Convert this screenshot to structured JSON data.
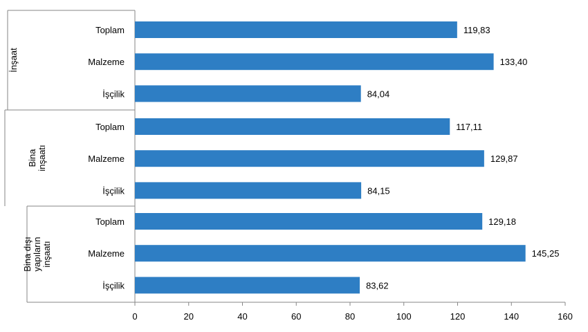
{
  "chart_data": {
    "type": "bar",
    "orientation": "horizontal",
    "title": "",
    "xlabel": "",
    "ylabel": "",
    "xlim": [
      0,
      160
    ],
    "x_ticks": [
      "0",
      "20",
      "40",
      "60",
      "80",
      "100",
      "120",
      "140",
      "160"
    ],
    "grid": false,
    "bar_color": "#2e7ec4",
    "groups": [
      {
        "lines": [
          "İnşaat"
        ],
        "bars": [
          {
            "category": "Toplam",
            "value": 119.83,
            "label": "119,83"
          },
          {
            "category": "Malzeme",
            "value": 133.4,
            "label": "133,40"
          },
          {
            "category": "İşçilik",
            "value": 84.04,
            "label": "84,04"
          }
        ]
      },
      {
        "lines": [
          "Bina",
          "inşaatı"
        ],
        "bars": [
          {
            "category": "Toplam",
            "value": 117.11,
            "label": "117,11"
          },
          {
            "category": "Malzeme",
            "value": 129.87,
            "label": "129,87"
          },
          {
            "category": "İşçilik",
            "value": 84.15,
            "label": "84,15"
          }
        ]
      },
      {
        "lines": [
          "Bina dışı",
          "yapıların",
          "inşaatı"
        ],
        "bars": [
          {
            "category": "Toplam",
            "value": 129.18,
            "label": "129,18"
          },
          {
            "category": "Malzeme",
            "value": 145.25,
            "label": "145,25"
          },
          {
            "category": "İşçilik",
            "value": 83.62,
            "label": "83,62"
          }
        ]
      }
    ]
  }
}
